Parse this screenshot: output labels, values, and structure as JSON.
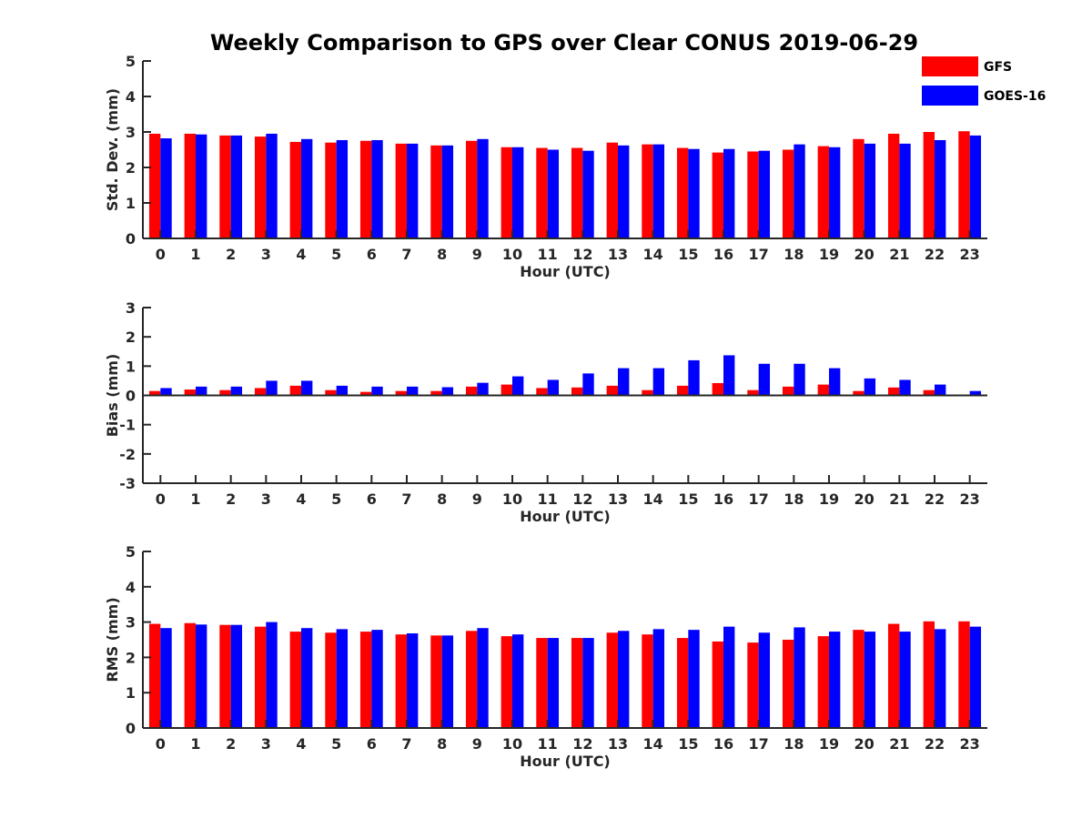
{
  "figure": {
    "title": "Weekly Comparison to GPS over Clear CONUS 2019-06-29"
  },
  "legend": {
    "placement": "top-right",
    "items": [
      {
        "label": "GFS",
        "color": "#ff0000"
      },
      {
        "label": "GOES-16",
        "color": "#0000ff"
      }
    ]
  },
  "chart_data": [
    {
      "type": "bar",
      "categories": [
        "0",
        "1",
        "2",
        "3",
        "4",
        "5",
        "6",
        "7",
        "8",
        "9",
        "10",
        "11",
        "12",
        "13",
        "14",
        "15",
        "16",
        "17",
        "18",
        "19",
        "20",
        "21",
        "22",
        "23"
      ],
      "xlabel": "Hour (UTC)",
      "ylabel": "Std. Dev. (mm)",
      "ylim": [
        0,
        5
      ],
      "yticks": [
        "0",
        "1",
        "2",
        "3",
        "4",
        "5"
      ],
      "grid": false,
      "series": [
        {
          "name": "GFS",
          "color": "#ff0000",
          "values": [
            2.95,
            2.95,
            2.9,
            2.87,
            2.72,
            2.7,
            2.75,
            2.67,
            2.62,
            2.75,
            2.57,
            2.55,
            2.55,
            2.7,
            2.65,
            2.55,
            2.42,
            2.45,
            2.5,
            2.6,
            2.8,
            2.95,
            3.0,
            3.02
          ]
        },
        {
          "name": "GOES-16",
          "color": "#0000ff",
          "values": [
            2.82,
            2.93,
            2.9,
            2.95,
            2.8,
            2.77,
            2.77,
            2.67,
            2.62,
            2.8,
            2.57,
            2.5,
            2.47,
            2.62,
            2.65,
            2.52,
            2.52,
            2.47,
            2.65,
            2.57,
            2.67,
            2.67,
            2.77,
            2.9
          ]
        }
      ]
    },
    {
      "type": "bar",
      "categories": [
        "0",
        "1",
        "2",
        "3",
        "4",
        "5",
        "6",
        "7",
        "8",
        "9",
        "10",
        "11",
        "12",
        "13",
        "14",
        "15",
        "16",
        "17",
        "18",
        "19",
        "20",
        "21",
        "22",
        "23"
      ],
      "xlabel": "Hour (UTC)",
      "ylabel": "Bias (mm)",
      "ylim": [
        -3,
        3
      ],
      "yticks": [
        "-3",
        "-2",
        "-1",
        "0",
        "1",
        "2",
        "3"
      ],
      "grid": false,
      "series": [
        {
          "name": "GFS",
          "color": "#ff0000",
          "values": [
            0.15,
            0.2,
            0.18,
            0.25,
            0.33,
            0.18,
            0.12,
            0.15,
            0.15,
            0.3,
            0.37,
            0.25,
            0.27,
            0.33,
            0.18,
            0.33,
            0.42,
            0.18,
            0.3,
            0.37,
            0.15,
            0.27,
            0.18,
            0.02
          ]
        },
        {
          "name": "GOES-16",
          "color": "#0000ff",
          "values": [
            0.25,
            0.3,
            0.3,
            0.5,
            0.5,
            0.33,
            0.3,
            0.3,
            0.28,
            0.43,
            0.65,
            0.53,
            0.75,
            0.93,
            0.93,
            1.2,
            1.37,
            1.08,
            1.08,
            0.93,
            0.58,
            0.53,
            0.37,
            0.15
          ]
        }
      ]
    },
    {
      "type": "bar",
      "categories": [
        "0",
        "1",
        "2",
        "3",
        "4",
        "5",
        "6",
        "7",
        "8",
        "9",
        "10",
        "11",
        "12",
        "13",
        "14",
        "15",
        "16",
        "17",
        "18",
        "19",
        "20",
        "21",
        "22",
        "23"
      ],
      "xlabel": "Hour (UTC)",
      "ylabel": "RMS (mm)",
      "ylim": [
        0,
        5
      ],
      "yticks": [
        "0",
        "1",
        "2",
        "3",
        "4",
        "5"
      ],
      "grid": false,
      "series": [
        {
          "name": "GFS",
          "color": "#ff0000",
          "values": [
            2.95,
            2.97,
            2.92,
            2.87,
            2.73,
            2.7,
            2.73,
            2.65,
            2.62,
            2.75,
            2.6,
            2.55,
            2.55,
            2.7,
            2.65,
            2.55,
            2.45,
            2.42,
            2.5,
            2.6,
            2.78,
            2.95,
            3.02,
            3.02
          ]
        },
        {
          "name": "GOES-16",
          "color": "#0000ff",
          "values": [
            2.83,
            2.93,
            2.92,
            3.0,
            2.83,
            2.8,
            2.78,
            2.68,
            2.62,
            2.83,
            2.65,
            2.55,
            2.55,
            2.75,
            2.8,
            2.78,
            2.87,
            2.7,
            2.85,
            2.73,
            2.73,
            2.73,
            2.8,
            2.87
          ]
        }
      ]
    }
  ]
}
